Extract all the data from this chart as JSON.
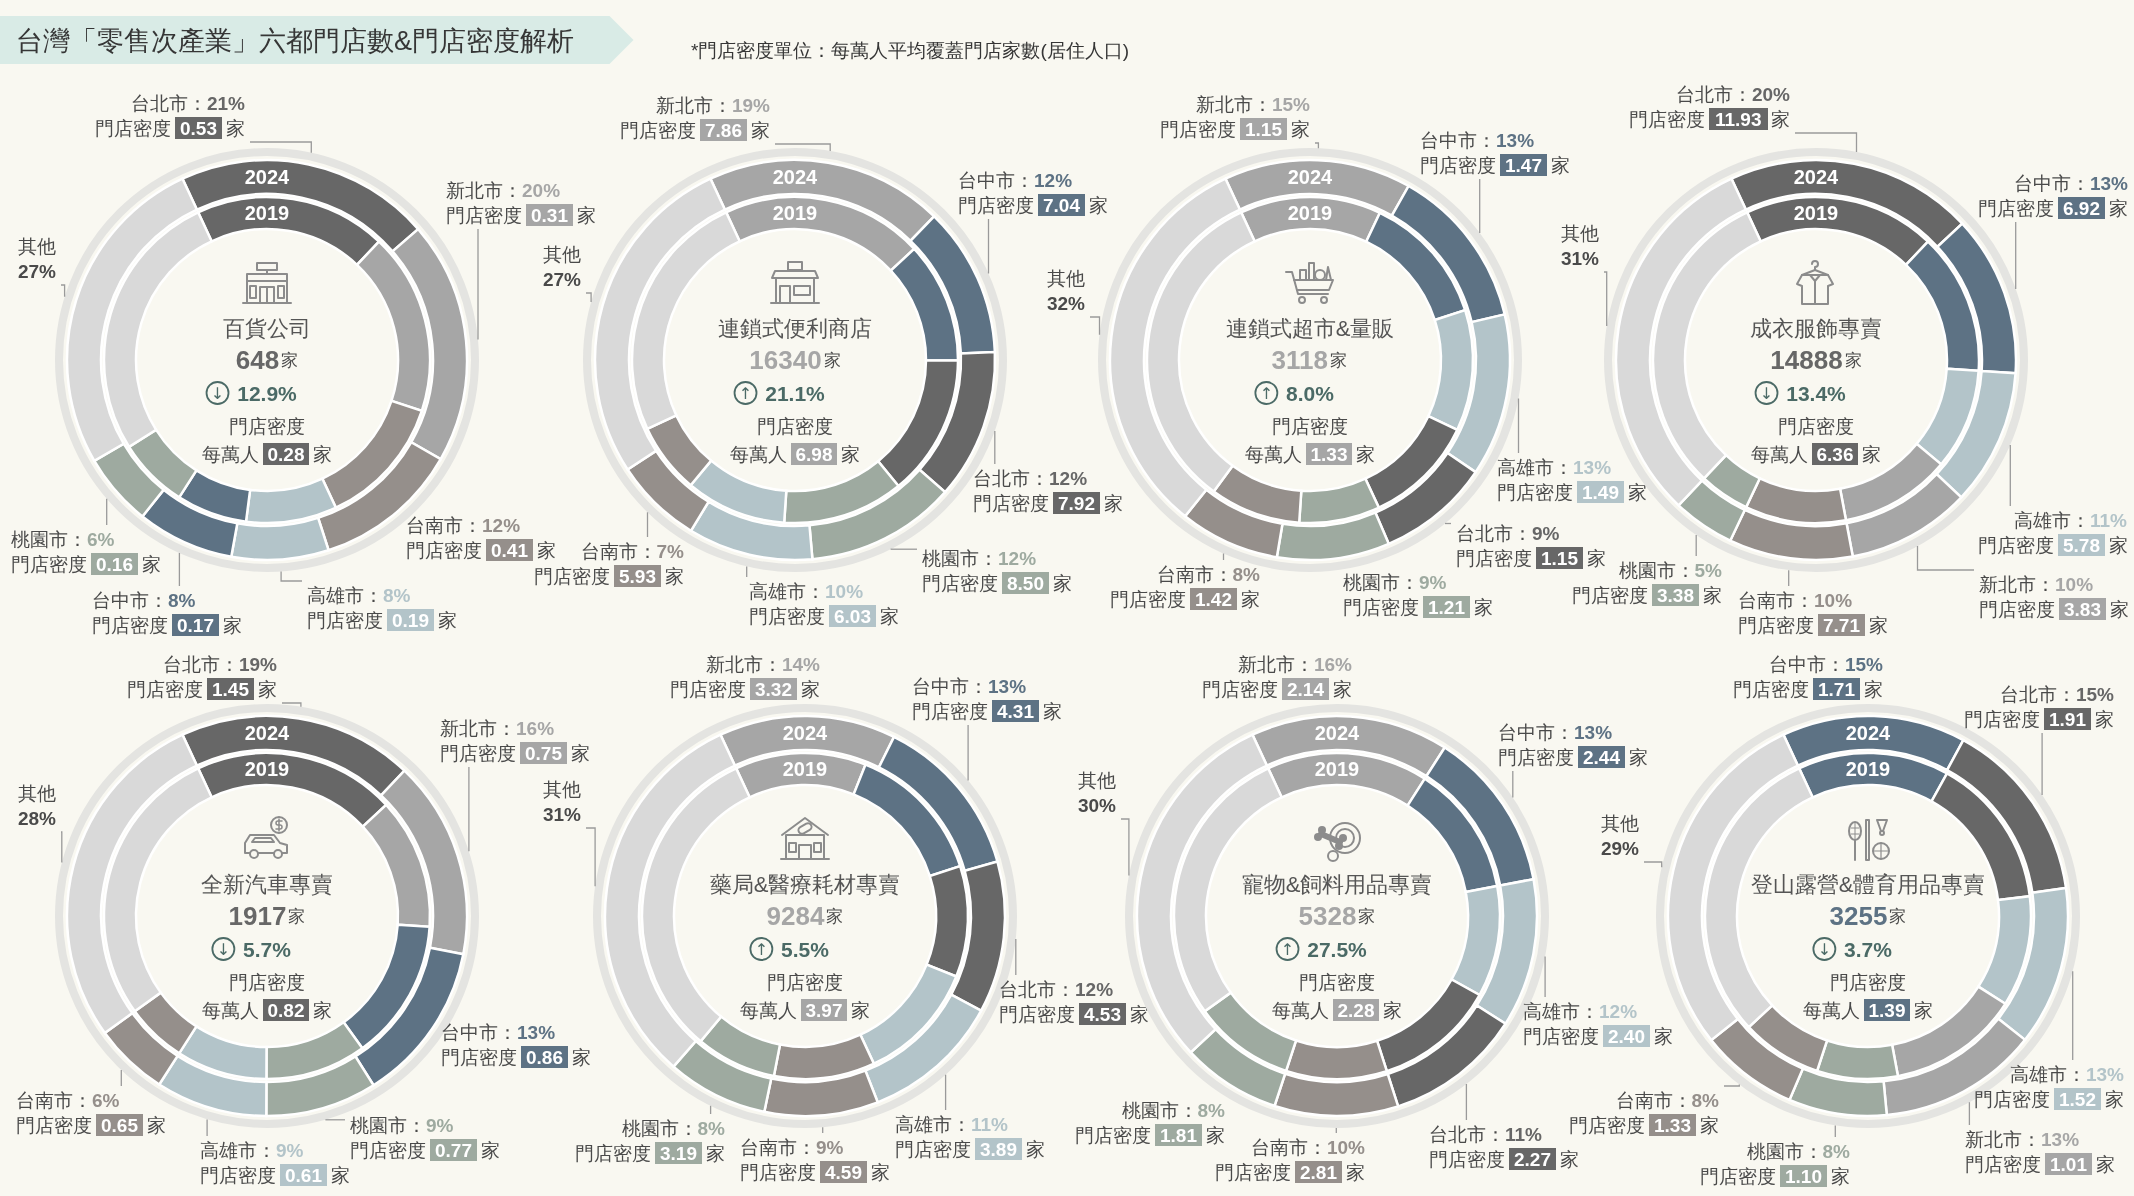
{
  "chart_data": [
    {
      "type": "other",
      "title": "台灣「零售次產業」六都門店數&門店密度解析",
      "annotations": [
        "*門店密度單位：每萬人平均覆蓋門店家數(居住人口)"
      ]
    },
    {
      "type": "donut",
      "title": "百貨公司",
      "subtitle": "648家",
      "categories": [
        "台北市",
        "新北市",
        "台南市",
        "高雄市",
        "台中市",
        "桃園市",
        "其他"
      ],
      "series": [
        {
          "name": "2024",
          "values": [
            21,
            20,
            12,
            8,
            8,
            6,
            27
          ],
          "colors": [
            "#676767",
            "#a6a6a6",
            "#958f8b",
            "#b3c4c9",
            "#5d7284",
            "#9eaaa0",
            "#d9d9d9"
          ],
          "value_labels": [
            "：21%",
            "：20%",
            "：12%",
            "：8%",
            "：8%",
            "：6%",
            "27%"
          ]
        },
        {
          "name": "2019",
          "values": [
            19,
            18,
            13,
            9,
            7,
            7,
            27
          ],
          "colors": [
            "#676767",
            "#a6a6a6",
            "#958f8b",
            "#b3c4c9",
            "#5d7284",
            "#9eaaa0",
            "#d9d9d9"
          ]
        }
      ],
      "annotations": [
        "↓ 12.9%",
        "門店密度",
        "每萬人 0.28 家",
        "門店密度 0.53 家",
        "門店密度 0.31 家",
        "門店密度 0.41 家",
        "門店密度 0.19 家",
        "門店密度 0.17 家",
        "門店密度 0.16 家"
      ]
    },
    {
      "type": "donut",
      "title": "連鎖式便利商店",
      "subtitle": "16340家",
      "categories": [
        "新北市",
        "台中市",
        "台北市",
        "桃園市",
        "高雄市",
        "台南市",
        "其他"
      ],
      "series": [
        {
          "name": "2024",
          "values": [
            19,
            12,
            12,
            12,
            10,
            7,
            27
          ],
          "colors": [
            "#a6a6a6",
            "#5d7284",
            "#676767",
            "#9eaaa0",
            "#b3c4c9",
            "#958f8b",
            "#d9d9d9"
          ],
          "value_labels": [
            "：19%",
            "：12%",
            "：12%",
            "：12%",
            "：10%",
            "：7%",
            "27%"
          ]
        },
        {
          "name": "2019",
          "values": [
            20,
            12,
            14,
            12,
            10,
            7,
            25
          ],
          "colors": [
            "#a6a6a6",
            "#5d7284",
            "#676767",
            "#9eaaa0",
            "#b3c4c9",
            "#958f8b",
            "#d9d9d9"
          ]
        }
      ],
      "annotations": [
        "↑ 21.1%",
        "門店密度",
        "每萬人 6.98 家",
        "門店密度 7.86 家",
        "門店密度 7.04 家",
        "門店密度 7.92 家",
        "門店密度 8.50 家",
        "門店密度 6.03 家",
        "門店密度 5.93 家"
      ]
    },
    {
      "type": "donut",
      "title": "連鎖式超市&量販",
      "subtitle": "3118家",
      "categories": [
        "新北市",
        "台中市",
        "高雄市",
        "台北市",
        "桃園市",
        "台南市",
        "其他"
      ],
      "series": [
        {
          "name": "2024",
          "values": [
            15,
            13,
            13,
            9,
            9,
            8,
            32
          ],
          "colors": [
            "#a6a6a6",
            "#5d7284",
            "#b3c4c9",
            "#676767",
            "#9eaaa0",
            "#958f8b",
            "#d9d9d9"
          ],
          "value_labels": [
            "：15%",
            "：13%",
            "：13%",
            "：9%",
            "：9%",
            "：8%",
            "32%"
          ]
        },
        {
          "name": "2019",
          "values": [
            14,
            13,
            12,
            11,
            8,
            9,
            33
          ],
          "colors": [
            "#a6a6a6",
            "#5d7284",
            "#b3c4c9",
            "#676767",
            "#9eaaa0",
            "#958f8b",
            "#d9d9d9"
          ]
        }
      ],
      "annotations": [
        "↑ 8.0%",
        "門店密度",
        "每萬人 1.33 家",
        "門店密度 1.15 家",
        "門店密度 1.47 家",
        "門店密度 1.49 家",
        "門店密度 1.15 家",
        "門店密度 1.21 家",
        "門店密度 1.42 家"
      ]
    },
    {
      "type": "donut",
      "title": "成衣服飾專賣",
      "subtitle": "14888家",
      "categories": [
        "台北市",
        "台中市",
        "高雄市",
        "新北市",
        "台南市",
        "桃園市",
        "其他"
      ],
      "series": [
        {
          "name": "2024",
          "values": [
            20,
            13,
            11,
            10,
            10,
            5,
            31
          ],
          "colors": [
            "#676767",
            "#5d7284",
            "#b3c4c9",
            "#a6a6a6",
            "#958f8b",
            "#9eaaa0",
            "#d9d9d9"
          ],
          "value_labels": [
            "：20%",
            "：13%",
            "：11%",
            "：10%",
            "：10%",
            "：5%",
            "31%"
          ]
        },
        {
          "name": "2019",
          "values": [
            19,
            14,
            10,
            11,
            10,
            5,
            31
          ],
          "colors": [
            "#676767",
            "#5d7284",
            "#b3c4c9",
            "#a6a6a6",
            "#958f8b",
            "#9eaaa0",
            "#d9d9d9"
          ]
        }
      ],
      "annotations": [
        "↓ 13.4%",
        "門店密度",
        "每萬人 6.36 家",
        "門店密度 11.93 家",
        "門店密度 6.92 家",
        "門店密度 5.78 家",
        "門店密度 3.83 家",
        "門店密度 7.71 家",
        "門店密度 3.38 家"
      ]
    },
    {
      "type": "donut",
      "title": "全新汽車專賣",
      "subtitle": "1917家",
      "categories": [
        "台北市",
        "新北市",
        "台中市",
        "桃園市",
        "高雄市",
        "台南市",
        "其他"
      ],
      "series": [
        {
          "name": "2024",
          "values": [
            19,
            16,
            13,
            9,
            9,
            6,
            28
          ],
          "colors": [
            "#676767",
            "#a6a6a6",
            "#5d7284",
            "#9eaaa0",
            "#b3c4c9",
            "#958f8b",
            "#d9d9d9"
          ],
          "value_labels": [
            "：19%",
            "：16%",
            "：13%",
            "：9%",
            "：9%",
            "：6%",
            "28%"
          ]
        },
        {
          "name": "2019",
          "values": [
            20,
            13,
            14,
            10,
            9,
            6,
            28
          ],
          "colors": [
            "#676767",
            "#a6a6a6",
            "#5d7284",
            "#9eaaa0",
            "#b3c4c9",
            "#958f8b",
            "#d9d9d9"
          ]
        }
      ],
      "annotations": [
        "↓ 5.7%",
        "門店密度",
        "每萬人 0.82 家",
        "門店密度 1.45 家",
        "門店密度 0.75 家",
        "門店密度 0.86 家",
        "門店密度 0.77 家",
        "門店密度 0.61 家",
        "門店密度 0.65 家"
      ]
    },
    {
      "type": "donut",
      "title": "藥局&醫療耗材專賣",
      "subtitle": "9284家",
      "categories": [
        "新北市",
        "台中市",
        "台北市",
        "高雄市",
        "台南市",
        "桃園市",
        "其他"
      ],
      "series": [
        {
          "name": "2024",
          "values": [
            14,
            13,
            12,
            11,
            9,
            8,
            31
          ],
          "colors": [
            "#a6a6a6",
            "#5d7284",
            "#676767",
            "#b3c4c9",
            "#958f8b",
            "#9eaaa0",
            "#d9d9d9"
          ],
          "value_labels": [
            "：14%",
            "：13%",
            "：12%",
            "：11%",
            "：9%",
            "：8%",
            "31%"
          ]
        },
        {
          "name": "2019",
          "values": [
            13,
            14,
            11,
            12,
            10,
            8,
            32
          ],
          "colors": [
            "#a6a6a6",
            "#5d7284",
            "#676767",
            "#b3c4c9",
            "#958f8b",
            "#9eaaa0",
            "#d9d9d9"
          ]
        }
      ],
      "annotations": [
        "↑ 5.5%",
        "門店密度",
        "每萬人 3.97 家",
        "門店密度 3.32 家",
        "門店密度 4.31 家",
        "門店密度 4.53 家",
        "門店密度 3.89 家",
        "門店密度 4.59 家",
        "門店密度 3.19 家"
      ]
    },
    {
      "type": "donut",
      "title": "寵物&飼料用品專賣",
      "subtitle": "5328家",
      "categories": [
        "新北市",
        "台中市",
        "高雄市",
        "台北市",
        "台南市",
        "桃園市",
        "其他"
      ],
      "series": [
        {
          "name": "2024",
          "values": [
            16,
            13,
            12,
            11,
            10,
            8,
            30
          ],
          "colors": [
            "#a6a6a6",
            "#5d7284",
            "#b3c4c9",
            "#676767",
            "#958f8b",
            "#9eaaa0",
            "#d9d9d9"
          ],
          "value_labels": [
            "：16%",
            "：13%",
            "：12%",
            "：11%",
            "：10%",
            "：8%",
            "30%"
          ]
        },
        {
          "name": "2019",
          "values": [
            16,
            13,
            11,
            12,
            10,
            10,
            28
          ],
          "colors": [
            "#a6a6a6",
            "#5d7284",
            "#b3c4c9",
            "#676767",
            "#958f8b",
            "#9eaaa0",
            "#d9d9d9"
          ]
        }
      ],
      "annotations": [
        "↑ 27.5%",
        "門店密度",
        "每萬人 2.28 家",
        "門店密度 2.14 家",
        "門店密度 2.44 家",
        "門店密度 2.40 家",
        "門店密度 2.27 家",
        "門店密度 2.81 家",
        "門店密度 1.81 家"
      ]
    },
    {
      "type": "donut",
      "title": "登山露營&體育用品專賣",
      "subtitle": "3255家",
      "categories": [
        "台中市",
        "台北市",
        "高雄市",
        "新北市",
        "桃園市",
        "台南市",
        "其他"
      ],
      "series": [
        {
          "name": "2024",
          "values": [
            15,
            15,
            13,
            13,
            8,
            8,
            29
          ],
          "colors": [
            "#5d7284",
            "#676767",
            "#b3c4c9",
            "#a6a6a6",
            "#9eaaa0",
            "#958f8b",
            "#d9d9d9"
          ],
          "value_labels": [
            "：15%",
            "：15%",
            "：13%",
            "：13%",
            "：8%",
            "：8%",
            "29%"
          ]
        },
        {
          "name": "2019",
          "values": [
            15,
            15,
            11,
            13,
            8,
            8,
            30
          ],
          "colors": [
            "#5d7284",
            "#676767",
            "#b3c4c9",
            "#a6a6a6",
            "#9eaaa0",
            "#958f8b",
            "#d9d9d9"
          ]
        }
      ],
      "annotations": [
        "↓ 3.7%",
        "門店密度",
        "每萬人 1.39 家",
        "門店密度 1.71 家",
        "門店密度 1.91 家",
        "門店密度 1.52 家",
        "門店密度 1.01 家",
        "門店密度 1.10 家",
        "門店密度 1.33 家"
      ]
    }
  ]
}
